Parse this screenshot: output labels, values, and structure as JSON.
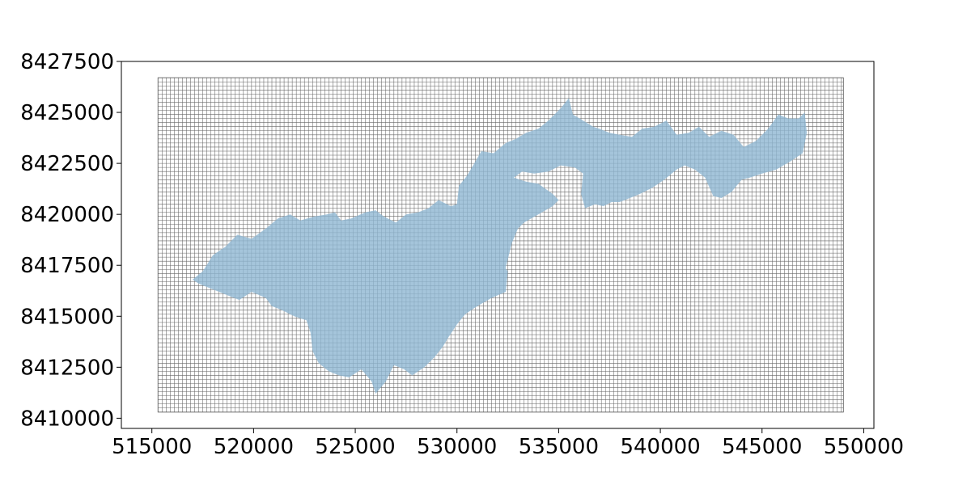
{
  "chart_data": {
    "type": "map",
    "title": "",
    "xlabel": "",
    "ylabel": "",
    "xlim": [
      513500,
      550500
    ],
    "ylim": [
      8409500,
      8427500
    ],
    "xticks": [
      515000,
      520000,
      525000,
      530000,
      535000,
      540000,
      545000,
      550000
    ],
    "yticks": [
      8410000,
      8412500,
      8415000,
      8417500,
      8420000,
      8422500,
      8425000,
      8427500
    ],
    "xtick_labels": [
      "515000",
      "520000",
      "525000",
      "530000",
      "535000",
      "540000",
      "545000",
      "550000"
    ],
    "ytick_labels": [
      "8410000",
      "8412500",
      "8415000",
      "8417500",
      "8420000",
      "8422500",
      "8425000",
      "8427500"
    ],
    "grid_mesh": {
      "x_range": [
        515300,
        549000
      ],
      "y_range": [
        8410300,
        8426700
      ],
      "cell_size": 200,
      "line_color": "#555555"
    },
    "polygon": {
      "fill_color": "#8fb6d2",
      "coordinates": [
        [
          517000,
          8416800
        ],
        [
          517500,
          8417200
        ],
        [
          518000,
          8418000
        ],
        [
          518600,
          8418400
        ],
        [
          519200,
          8419000
        ],
        [
          519900,
          8418800
        ],
        [
          520600,
          8419300
        ],
        [
          521200,
          8419800
        ],
        [
          521800,
          8420000
        ],
        [
          522300,
          8419700
        ],
        [
          523000,
          8419900
        ],
        [
          523600,
          8420000
        ],
        [
          524000,
          8420100
        ],
        [
          524300,
          8419700
        ],
        [
          524800,
          8419800
        ],
        [
          525500,
          8420100
        ],
        [
          526000,
          8420200
        ],
        [
          526400,
          8419900
        ],
        [
          527000,
          8419600
        ],
        [
          527500,
          8420000
        ],
        [
          528100,
          8420100
        ],
        [
          528600,
          8420300
        ],
        [
          529100,
          8420700
        ],
        [
          529700,
          8420400
        ],
        [
          530000,
          8420500
        ],
        [
          530100,
          8421400
        ],
        [
          530500,
          8421900
        ],
        [
          531200,
          8423100
        ],
        [
          531800,
          8423000
        ],
        [
          532400,
          8423500
        ],
        [
          532900,
          8423700
        ],
        [
          533400,
          8424000
        ],
        [
          534000,
          8424200
        ],
        [
          534500,
          8424600
        ],
        [
          535100,
          8425200
        ],
        [
          535500,
          8425700
        ],
        [
          535700,
          8424900
        ],
        [
          536200,
          8424600
        ],
        [
          536700,
          8424300
        ],
        [
          537000,
          8424200
        ],
        [
          537500,
          8424000
        ],
        [
          538000,
          8423900
        ],
        [
          538600,
          8423800
        ],
        [
          539100,
          8424200
        ],
        [
          539700,
          8424300
        ],
        [
          540300,
          8424600
        ],
        [
          540800,
          8423900
        ],
        [
          541400,
          8424000
        ],
        [
          541900,
          8424300
        ],
        [
          542400,
          8423800
        ],
        [
          543000,
          8424100
        ],
        [
          543600,
          8423900
        ],
        [
          544100,
          8423300
        ],
        [
          544700,
          8423600
        ],
        [
          545300,
          8424200
        ],
        [
          545800,
          8424900
        ],
        [
          546300,
          8424700
        ],
        [
          546800,
          8424700
        ],
        [
          547100,
          8425000
        ],
        [
          547200,
          8424000
        ],
        [
          547000,
          8423000
        ],
        [
          546400,
          8422600
        ],
        [
          545700,
          8422200
        ],
        [
          545000,
          8422000
        ],
        [
          544400,
          8421800
        ],
        [
          544000,
          8421700
        ],
        [
          543500,
          8421100
        ],
        [
          543000,
          8420800
        ],
        [
          542600,
          8420900
        ],
        [
          542200,
          8421800
        ],
        [
          541700,
          8422200
        ],
        [
          541200,
          8422400
        ],
        [
          540800,
          8422200
        ],
        [
          540200,
          8421700
        ],
        [
          539600,
          8421300
        ],
        [
          539000,
          8421000
        ],
        [
          538500,
          8420800
        ],
        [
          538000,
          8420600
        ],
        [
          537600,
          8420600
        ],
        [
          537200,
          8420400
        ],
        [
          536800,
          8420500
        ],
        [
          536300,
          8420300
        ],
        [
          536100,
          8421000
        ],
        [
          536200,
          8422000
        ],
        [
          535800,
          8422300
        ],
        [
          535100,
          8422400
        ],
        [
          534500,
          8422100
        ],
        [
          533800,
          8422000
        ],
        [
          533200,
          8422100
        ],
        [
          532800,
          8421800
        ],
        [
          533400,
          8421600
        ],
        [
          534000,
          8421500
        ],
        [
          534700,
          8421000
        ],
        [
          535000,
          8420700
        ],
        [
          534700,
          8420400
        ],
        [
          534000,
          8420000
        ],
        [
          533300,
          8419600
        ],
        [
          533000,
          8419300
        ],
        [
          532700,
          8418600
        ],
        [
          532500,
          8417800
        ],
        [
          532300,
          8417000
        ],
        [
          532200,
          8416300
        ],
        [
          531800,
          8416500
        ],
        [
          531300,
          8416700
        ],
        [
          531000,
          8416900
        ],
        [
          531800,
          8417300
        ],
        [
          532300,
          8417500
        ],
        [
          532500,
          8417200
        ],
        [
          532400,
          8416200
        ],
        [
          531700,
          8415900
        ],
        [
          531000,
          8415500
        ],
        [
          530400,
          8415100
        ],
        [
          530000,
          8414600
        ],
        [
          529600,
          8414000
        ],
        [
          529300,
          8413500
        ],
        [
          528900,
          8413000
        ],
        [
          528400,
          8412500
        ],
        [
          527800,
          8412100
        ],
        [
          527400,
          8412400
        ],
        [
          526900,
          8412600
        ],
        [
          526500,
          8411800
        ],
        [
          526000,
          8411200
        ],
        [
          525800,
          8411800
        ],
        [
          525300,
          8412400
        ],
        [
          524700,
          8412000
        ],
        [
          524200,
          8412100
        ],
        [
          523700,
          8412300
        ],
        [
          523200,
          8412700
        ],
        [
          522900,
          8413300
        ],
        [
          522800,
          8414200
        ],
        [
          522600,
          8414800
        ],
        [
          522000,
          8415000
        ],
        [
          521400,
          8415300
        ],
        [
          520900,
          8415500
        ],
        [
          520600,
          8415900
        ],
        [
          519900,
          8416200
        ],
        [
          519300,
          8415800
        ],
        [
          518800,
          8416000
        ],
        [
          518300,
          8416200
        ],
        [
          517800,
          8416400
        ],
        [
          517300,
          8416600
        ]
      ]
    }
  }
}
